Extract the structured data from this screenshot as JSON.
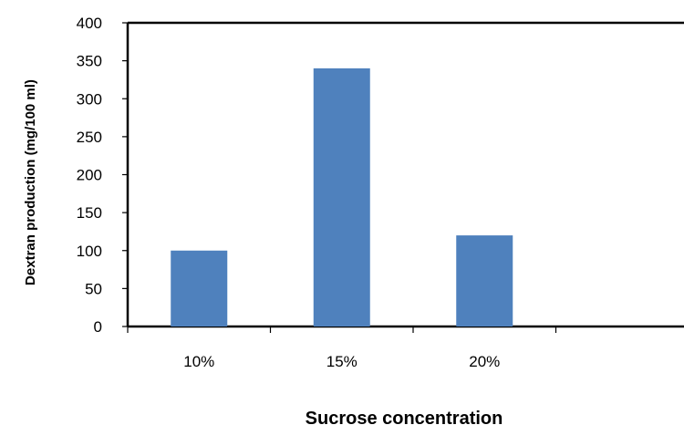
{
  "chart_data": {
    "type": "bar",
    "categories": [
      "10%",
      "15%",
      "20%",
      ""
    ],
    "values": [
      100,
      340,
      120,
      null
    ],
    "title": "",
    "xlabel": "Sucrose concentration",
    "ylabel": "Dextran production (mg/100 ml)",
    "ylim": [
      0,
      400
    ],
    "yticks": [
      0,
      50,
      100,
      150,
      200,
      250,
      300,
      350,
      400
    ],
    "grid": false,
    "legend": "none",
    "colors": {
      "bar": "#4f81bd",
      "axis": "#000000"
    }
  }
}
